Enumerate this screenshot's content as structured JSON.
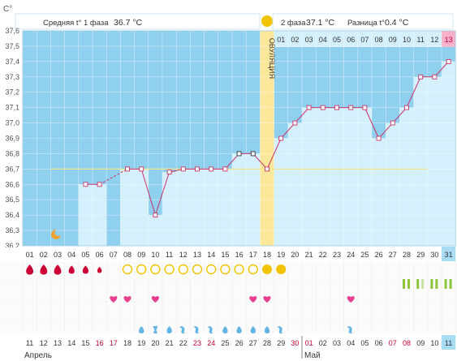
{
  "chart_data": {
    "type": "line",
    "y_unit": "C°",
    "ylim": [
      36.2,
      37.6
    ],
    "y_ticks": [
      "36,2",
      "36,3",
      "36,4",
      "36,5",
      "36,6",
      "36,7",
      "36,8",
      "36,9",
      "37,0",
      "37,1",
      "37,2",
      "37,3",
      "37,4",
      "37,5",
      "37,6"
    ],
    "cycle_days": [
      "01",
      "02",
      "03",
      "04",
      "05",
      "06",
      "07",
      "08",
      "09",
      "10",
      "11",
      "12",
      "13",
      "14",
      "15",
      "16",
      "17",
      "18",
      "19",
      "20",
      "21",
      "22",
      "23",
      "24",
      "25",
      "26",
      "27",
      "28",
      "29",
      "30",
      "31"
    ],
    "phase2_days": [
      "01",
      "02",
      "03",
      "04",
      "05",
      "06",
      "07",
      "08",
      "09",
      "10",
      "11",
      "12",
      "13"
    ],
    "calendar_dates": [
      "11",
      "12",
      "13",
      "14",
      "15",
      "16",
      "17",
      "18",
      "19",
      "20",
      "21",
      "22",
      "23",
      "24",
      "25",
      "26",
      "27",
      "28",
      "29",
      "30",
      "01",
      "02",
      "03",
      "04",
      "05",
      "06",
      "07",
      "08",
      "09",
      "10",
      "11"
    ],
    "red_dates": [
      "16",
      "17",
      "23",
      "24",
      "30",
      "01",
      "07",
      "08"
    ],
    "month_labels": [
      "Апрель",
      "Май"
    ],
    "temperatures": [
      null,
      null,
      null,
      null,
      36.6,
      36.6,
      null,
      36.7,
      36.7,
      36.4,
      36.68,
      36.7,
      36.7,
      36.7,
      36.7,
      36.8,
      36.8,
      36.7,
      36.9,
      37.0,
      37.1,
      37.1,
      37.1,
      37.1,
      37.1,
      36.9,
      37.0,
      37.1,
      37.3,
      37.3,
      37.4,
      37.4
    ],
    "coverline": 36.7,
    "ovulation_day": 18,
    "phase1_label": "Средняя t° 1 фаза",
    "phase1_value": "36.7 °C",
    "phase2_label": "2 фаза",
    "phase2_value": "37.1 °C",
    "diff_label": "Разница t°",
    "diff_value": "0.4 °C",
    "ovulation_label": "ОВУЛЯЦИЯ",
    "bleeding": {
      "1": 3,
      "2": 3,
      "3": 3,
      "4": 2,
      "5": 2,
      "6": 1
    },
    "follicles": [
      8,
      9,
      10,
      11,
      12,
      13,
      14,
      15,
      16,
      17
    ],
    "ovulation_suns": [
      18,
      19
    ],
    "hearts": [
      7,
      8,
      10,
      17,
      18,
      24
    ],
    "drops": {
      "9": "d",
      "10": "h",
      "11": "d",
      "12": "s",
      "13": "s",
      "14": "s",
      "15": "d",
      "16": "d",
      "17": "d",
      "18": "d",
      "19": "s",
      "24": "s"
    },
    "tests": [
      28,
      29,
      30,
      31
    ],
    "colors": {
      "blue": "#8fd0ef",
      "light": "#d4f0fc",
      "pink": "#f7b0c8",
      "ovulation": "#fde79a",
      "line": "#cc3366",
      "red": "#cc0033",
      "follicle": "#f2c400",
      "heart": "#e8408c",
      "drop": "#64b4e6",
      "test": "#8cc43c"
    }
  }
}
